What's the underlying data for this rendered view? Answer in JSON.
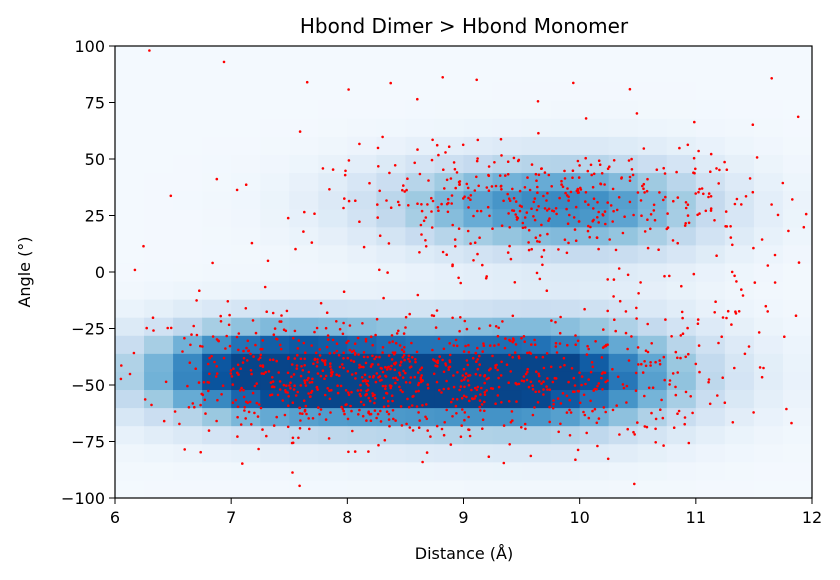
{
  "chart_data": {
    "type": "scatter",
    "title": "Hbond Dimer > Hbond Monomer",
    "xlabel": "Distance (Å)",
    "ylabel": "Angle (°)",
    "xlim": [
      6,
      12
    ],
    "ylim": [
      -100,
      100
    ],
    "xticks": [
      6,
      7,
      8,
      9,
      10,
      11,
      12
    ],
    "yticks": [
      -100,
      -75,
      -50,
      -25,
      0,
      25,
      50,
      75,
      100
    ],
    "xtick_labels": [
      "6",
      "7",
      "8",
      "9",
      "10",
      "11",
      "12"
    ],
    "ytick_labels": [
      "−100",
      "−75",
      "−50",
      "−25",
      "0",
      "25",
      "50",
      "75",
      "100"
    ],
    "grid": false,
    "legend": "none",
    "background_density": {
      "type": "heatmap",
      "colormap": "Blues",
      "x_bin_width": 0.25,
      "y_bin_width": 8,
      "clusters": [
        {
          "x_center": 8.4,
          "y_center": -47,
          "x_spread": 1.3,
          "y_spread": 15,
          "weight": 1.0
        },
        {
          "x_center": 7.3,
          "y_center": -42,
          "x_spread": 0.7,
          "y_spread": 14,
          "weight": 0.55
        },
        {
          "x_center": 9.9,
          "y_center": -45,
          "x_spread": 0.8,
          "y_spread": 18,
          "weight": 0.55
        },
        {
          "x_center": 9.4,
          "y_center": 30,
          "x_spread": 0.9,
          "y_spread": 14,
          "weight": 0.55
        },
        {
          "x_center": 10.4,
          "y_center": 28,
          "x_spread": 0.7,
          "y_spread": 16,
          "weight": 0.3
        }
      ]
    },
    "series": [
      {
        "color": "#ff0000",
        "point_count": 1500,
        "clusters": [
          {
            "x_center": 8.3,
            "y_center": -48,
            "x_spread": 0.75,
            "y_spread": 12,
            "share": 0.34
          },
          {
            "x_center": 7.2,
            "y_center": -42,
            "x_spread": 0.55,
            "y_spread": 15,
            "share": 0.1
          },
          {
            "x_center": 9.9,
            "y_center": -48,
            "x_spread": 0.7,
            "y_spread": 15,
            "share": 0.17
          },
          {
            "x_center": 9.3,
            "y_center": 32,
            "x_spread": 0.75,
            "y_spread": 11,
            "share": 0.15
          },
          {
            "x_center": 10.3,
            "y_center": 30,
            "x_spread": 0.6,
            "y_spread": 14,
            "share": 0.08
          },
          {
            "x_center": 11.2,
            "y_center": -5,
            "x_spread": 0.6,
            "y_spread": 45,
            "share": 0.06
          },
          {
            "x_center": 9.0,
            "y_center": 0,
            "x_spread": 1.7,
            "y_spread": 55,
            "share": 0.1
          }
        ]
      }
    ]
  }
}
